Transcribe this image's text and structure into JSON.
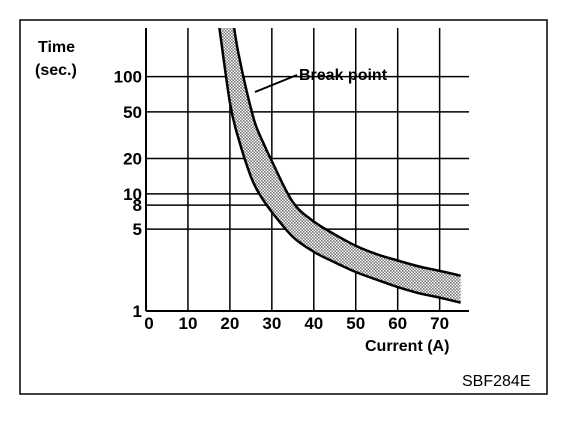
{
  "chart_data": {
    "type": "area",
    "title": "",
    "ylabel": [
      "Time",
      "(sec.)"
    ],
    "xlabel": "Current (A)",
    "x_ticks": [
      0,
      10,
      20,
      30,
      40,
      50,
      60,
      70
    ],
    "y_ticks": [
      1,
      5,
      8,
      10,
      20,
      50,
      100
    ],
    "x_range": [
      0,
      77
    ],
    "y_range": [
      1,
      260
    ],
    "y_scale": "log",
    "grid": true,
    "annotation": "Break point",
    "figure_code": "SBF284E",
    "series": [
      {
        "x": [
          17.5,
          20,
          22,
          25,
          27,
          30,
          35,
          40,
          45,
          50,
          55,
          60,
          65,
          70,
          75
        ],
        "values": [
          260,
          60,
          30,
          14,
          10,
          7,
          4.3,
          3.2,
          2.6,
          2.15,
          1.85,
          1.6,
          1.42,
          1.3,
          1.18
        ]
      },
      {
        "x": [
          21,
          22,
          24,
          26,
          28,
          30,
          35,
          40,
          45,
          50,
          55,
          60,
          65,
          70,
          75
        ],
        "values": [
          260,
          160,
          75,
          40,
          27,
          19,
          8.5,
          5.8,
          4.5,
          3.6,
          3.05,
          2.7,
          2.4,
          2.2,
          2.0
        ]
      }
    ],
    "band_color": "#b4b4b4"
  }
}
